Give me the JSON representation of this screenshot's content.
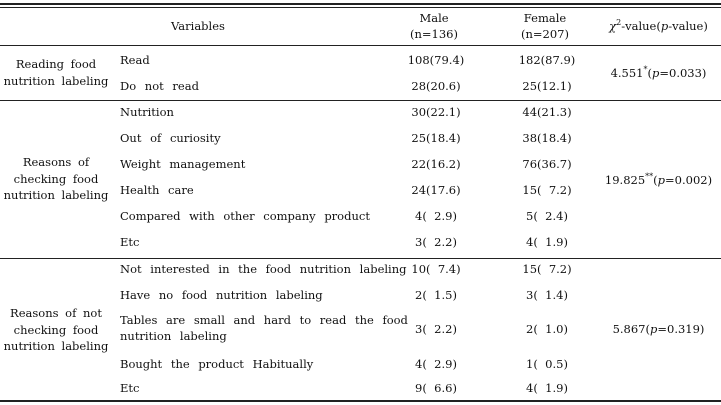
{
  "header": {
    "variables": "Variables",
    "male": "Male",
    "male_n": "(n=136)",
    "female": "Female",
    "female_n": "(n=207)",
    "chi_symbol": "χ",
    "chi_sup": "2",
    "chi_rest": "-value(",
    "chi_p": "p",
    "chi_close": "-value)"
  },
  "groups": [
    {
      "label_lines": [
        "Reading  food",
        "nutrition  labeling"
      ],
      "chi_value": "4.551",
      "chi_sup": "*",
      "chi_p_open": "(",
      "chi_p": "p",
      "chi_p_val": "=0.033)",
      "rows": [
        {
          "label": "Read",
          "male": "108(79.4)",
          "female": "182(87.9)"
        },
        {
          "label": "Do  not  read",
          "male": "28(20.6)",
          "female": "25(12.1)"
        }
      ]
    },
    {
      "label_lines": [
        "Reasons  of",
        "checking  food",
        "nutrition  labeling"
      ],
      "chi_value": "19.825",
      "chi_sup": "**",
      "chi_p_open": "(",
      "chi_p": "p",
      "chi_p_val": "=0.002)",
      "rows": [
        {
          "label": "Nutrition",
          "male": "30(22.1)",
          "female": "44(21.3)"
        },
        {
          "label": "Out  of  curiosity",
          "male": "25(18.4)",
          "female": "38(18.4)"
        },
        {
          "label": "Weight  management",
          "male": "22(16.2)",
          "female": "76(36.7)"
        },
        {
          "label": "Health  care",
          "male": "24(17.6)",
          "female": "15(  7.2)"
        },
        {
          "label": "Compared  with  other  company  product",
          "male": "4(  2.9)",
          "female": "5(  2.4)"
        },
        {
          "label": "Etc",
          "male": "3(  2.2)",
          "female": "4(  1.9)"
        }
      ]
    },
    {
      "label_lines": [
        "Reasons  of  not",
        "checking  food",
        "nutrition  labeling"
      ],
      "chi_value": "5.867",
      "chi_sup": "",
      "chi_p_open": "(",
      "chi_p": "p",
      "chi_p_val": "=0.319)",
      "rows": [
        {
          "label": "Not  interested  in  the  food  nutrition  labeling",
          "male": "10(  7.4)",
          "female": "15(  7.2)"
        },
        {
          "label": "Have  no  food  nutrition  labeling",
          "male": "2(  1.5)",
          "female": "3(  1.4)"
        },
        {
          "label_lines": [
            "Tables  are  small  and  hard  to  read  the  food",
            "nutrition  labeling"
          ],
          "male": "3(  2.2)",
          "female": "2(  1.0)"
        },
        {
          "label": "Bought  the  product  Habitually",
          "male": "4(  2.9)",
          "female": "1(  0.5)"
        },
        {
          "label": "Etc",
          "male": "9(  6.6)",
          "female": "4(  1.9)"
        }
      ]
    }
  ]
}
